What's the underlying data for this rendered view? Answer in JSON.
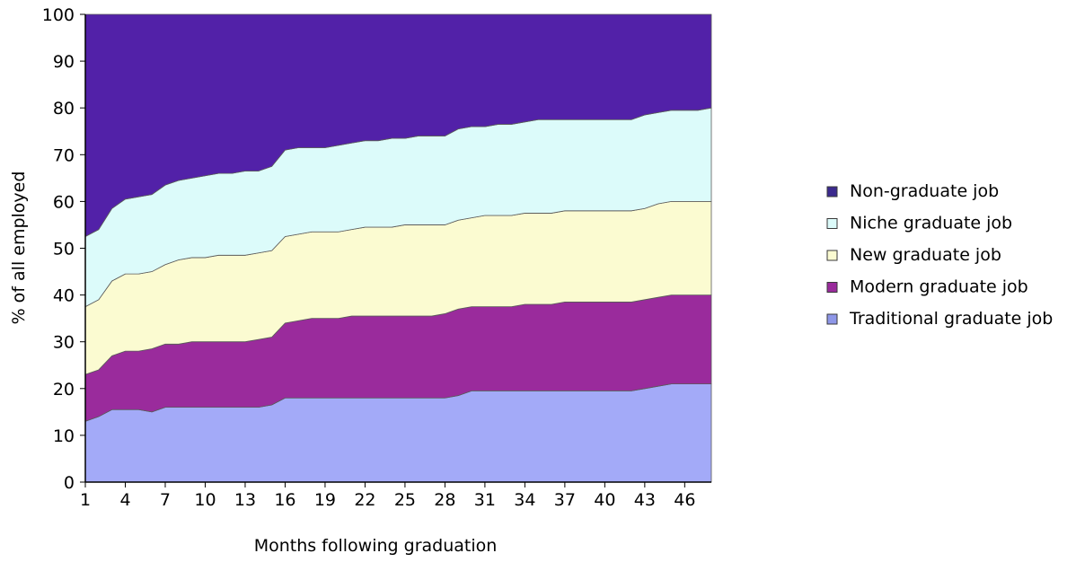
{
  "chart_data": {
    "type": "area",
    "stacked": true,
    "xlabel": "Months following graduation",
    "ylabel": "% of all employed",
    "ylim": [
      0,
      100
    ],
    "yticks": [
      0,
      10,
      20,
      30,
      40,
      50,
      60,
      70,
      80,
      90,
      100
    ],
    "xlim": [
      1,
      48
    ],
    "xticks": [
      1,
      4,
      7,
      10,
      13,
      16,
      19,
      22,
      25,
      28,
      31,
      34,
      37,
      40,
      43,
      46
    ],
    "grid": false,
    "legend_position": "right",
    "x": [
      1,
      2,
      3,
      4,
      5,
      6,
      7,
      8,
      9,
      10,
      11,
      12,
      13,
      14,
      15,
      16,
      17,
      18,
      19,
      20,
      21,
      22,
      23,
      24,
      25,
      26,
      27,
      28,
      29,
      30,
      31,
      32,
      33,
      34,
      35,
      36,
      37,
      38,
      39,
      40,
      41,
      42,
      43,
      44,
      45,
      46,
      47,
      48
    ],
    "boundaries": [
      [
        13,
        14,
        15.5,
        15.5,
        15.5,
        15,
        16,
        16,
        16,
        16,
        16,
        16,
        16,
        16,
        16.5,
        18,
        18,
        18,
        18,
        18,
        18,
        18,
        18,
        18,
        18,
        18,
        18,
        18,
        18.5,
        19.5,
        19.5,
        19.5,
        19.5,
        19.5,
        19.5,
        19.5,
        19.5,
        19.5,
        19.5,
        19.5,
        19.5,
        19.5,
        20,
        20.5,
        21,
        21,
        21,
        21
      ],
      [
        23,
        24,
        27,
        28,
        28,
        28.5,
        29.5,
        29.5,
        30,
        30,
        30,
        30,
        30,
        30.5,
        31,
        34,
        34.5,
        35,
        35,
        35,
        35.5,
        35.5,
        35.5,
        35.5,
        35.5,
        35.5,
        35.5,
        36,
        37,
        37.5,
        37.5,
        37.5,
        37.5,
        38,
        38,
        38,
        38.5,
        38.5,
        38.5,
        38.5,
        38.5,
        38.5,
        39,
        39.5,
        40,
        40,
        40,
        40
      ],
      [
        37.5,
        39,
        43,
        44.5,
        44.5,
        45,
        46.5,
        47.5,
        48,
        48,
        48.5,
        48.5,
        48.5,
        49,
        49.5,
        52.5,
        53,
        53.5,
        53.5,
        53.5,
        54,
        54.5,
        54.5,
        54.5,
        55,
        55,
        55,
        55,
        56,
        56.5,
        57,
        57,
        57,
        57.5,
        57.5,
        57.5,
        58,
        58,
        58,
        58,
        58,
        58,
        58.5,
        59.5,
        60,
        60,
        60,
        60
      ],
      [
        52.5,
        54,
        58.5,
        60.5,
        61,
        61.5,
        63.5,
        64.5,
        65,
        65.5,
        66,
        66,
        66.5,
        66.5,
        67.5,
        71,
        71.5,
        71.5,
        71.5,
        72,
        72.5,
        73,
        73,
        73.5,
        73.5,
        74,
        74,
        74,
        75.5,
        76,
        76,
        76.5,
        76.5,
        77,
        77.5,
        77.5,
        77.5,
        77.5,
        77.5,
        77.5,
        77.5,
        77.5,
        78.5,
        79,
        79.5,
        79.5,
        79.5,
        80
      ],
      [
        100,
        100,
        100,
        100,
        100,
        100,
        100,
        100,
        100,
        100,
        100,
        100,
        100,
        100,
        100,
        100,
        100,
        100,
        100,
        100,
        100,
        100,
        100,
        100,
        100,
        100,
        100,
        100,
        100,
        100,
        100,
        100,
        100,
        100,
        100,
        100,
        100,
        100,
        100,
        100,
        100,
        100,
        100,
        100,
        100,
        100,
        100,
        100
      ]
    ],
    "series": [
      {
        "name": "Traditional graduate job",
        "color": "#a3aaf8",
        "values": [
          13,
          14,
          15.5,
          15.5,
          15.5,
          15,
          16,
          16,
          16,
          16,
          16,
          16,
          16,
          16,
          16.5,
          18,
          18,
          18,
          18,
          18,
          18,
          18,
          18,
          18,
          18,
          18,
          18,
          18,
          18.5,
          19.5,
          19.5,
          19.5,
          19.5,
          19.5,
          19.5,
          19.5,
          19.5,
          19.5,
          19.5,
          19.5,
          19.5,
          19.5,
          20,
          20.5,
          21,
          21,
          21,
          21
        ]
      },
      {
        "name": "Modern graduate job",
        "color": "#9a2b9c",
        "values": [
          10,
          10,
          11.5,
          12.5,
          12.5,
          13.5,
          13.5,
          13.5,
          14,
          14,
          14,
          14,
          14,
          14.5,
          14.5,
          16,
          16.5,
          17,
          17,
          17,
          17.5,
          17.5,
          17.5,
          17.5,
          17.5,
          17.5,
          17.5,
          18,
          18.5,
          18,
          18,
          18,
          18,
          18.5,
          18.5,
          18.5,
          19,
          19,
          19,
          19,
          19,
          19,
          19,
          19,
          19,
          19,
          19,
          19
        ]
      },
      {
        "name": "New graduate job",
        "color": "#fbfbd1",
        "values": [
          14.5,
          15,
          16,
          16.5,
          16.5,
          16.5,
          17,
          18,
          18,
          18,
          18.5,
          18.5,
          18.5,
          18.5,
          18.5,
          18.5,
          18.5,
          18.5,
          18.5,
          18.5,
          18.5,
          19,
          19,
          19,
          19.5,
          19.5,
          19.5,
          19,
          19,
          19,
          19.5,
          19.5,
          19.5,
          19.5,
          19.5,
          19.5,
          19.5,
          19.5,
          19.5,
          19.5,
          19.5,
          19.5,
          19.5,
          20,
          20,
          20,
          20,
          20
        ]
      },
      {
        "name": "Niche graduate job",
        "color": "#dcfbfa",
        "values": [
          15,
          15,
          15.5,
          16,
          16.5,
          16.5,
          17,
          17,
          17,
          17.5,
          17.5,
          17.5,
          18,
          17.5,
          18,
          18.5,
          18.5,
          18,
          18,
          18.5,
          18.5,
          18.5,
          18.5,
          19,
          18.5,
          19,
          19,
          19,
          19.5,
          19.5,
          19,
          19.5,
          19.5,
          19.5,
          20,
          20,
          19.5,
          19.5,
          19.5,
          19.5,
          19.5,
          19.5,
          20,
          19.5,
          19.5,
          19.5,
          19.5,
          20
        ]
      },
      {
        "name": "Non-graduate job",
        "color": "#5221a8",
        "values": [
          47.5,
          46,
          41.5,
          39.5,
          39,
          38.5,
          36.5,
          35.5,
          35,
          34.5,
          34,
          34,
          33.5,
          33.5,
          32.5,
          29,
          28.5,
          28.5,
          28.5,
          28,
          27.5,
          27,
          27,
          26.5,
          26.5,
          26,
          26,
          26,
          24.5,
          24,
          24,
          23.5,
          23.5,
          23,
          22.5,
          22.5,
          22.5,
          22.5,
          22.5,
          22.5,
          22.5,
          22.5,
          21.5,
          21,
          20.5,
          20.5,
          20.5,
          20
        ]
      }
    ],
    "legend": [
      {
        "label": "Non-graduate job",
        "color": "#3b2a8e"
      },
      {
        "label": "Niche graduate job",
        "color": "#dcfbfa"
      },
      {
        "label": "New graduate job",
        "color": "#fbfbd1"
      },
      {
        "label": "Modern graduate job",
        "color": "#9a2b9c"
      },
      {
        "label": "Traditional graduate job",
        "color": "#8e97e8"
      }
    ]
  }
}
